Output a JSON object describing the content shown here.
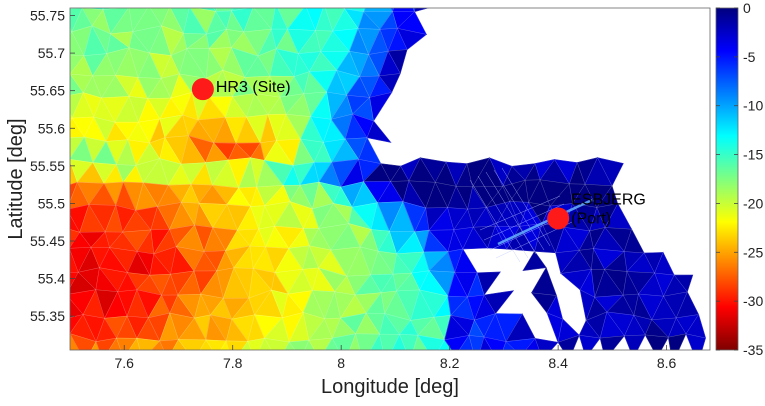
{
  "chart_data": {
    "type": "heatmap",
    "title": "",
    "xlabel": "Longitude [deg]",
    "ylabel": "Latitude [deg]",
    "xlim": [
      7.5,
      8.68
    ],
    "ylim": [
      55.305,
      55.76
    ],
    "xticks": [
      "7.6",
      "7.8",
      "8",
      "8.2",
      "8.4",
      "8.6"
    ],
    "xtick_values": [
      7.6,
      7.8,
      8.0,
      8.2,
      8.4,
      8.6
    ],
    "yticks": [
      "55.35",
      "55.4",
      "55.45",
      "55.5",
      "55.55",
      "55.6",
      "55.65",
      "55.7",
      "55.75"
    ],
    "ytick_values": [
      55.35,
      55.4,
      55.45,
      55.5,
      55.55,
      55.6,
      55.65,
      55.7,
      55.75
    ],
    "colorbar": {
      "min": -35,
      "max": 0,
      "ticks": [
        "0",
        "-5",
        "-10",
        "-15",
        "-20",
        "-25",
        "-30",
        "-35"
      ],
      "tick_values": [
        0,
        -5,
        -10,
        -15,
        -20,
        -25,
        -30,
        -35
      ],
      "colormap": "jet"
    },
    "markers": [
      {
        "label": "HR3 (Site)",
        "lon": 7.745,
        "lat": 55.652,
        "color": "#ff1a1a"
      },
      {
        "label": "ESBJERG",
        "label2": "(Port)",
        "lon": 8.4,
        "lat": 55.48,
        "color": "#ff1a1a"
      }
    ],
    "land_color": "#ffffff",
    "grid": false,
    "legend": "colorbar-right"
  }
}
